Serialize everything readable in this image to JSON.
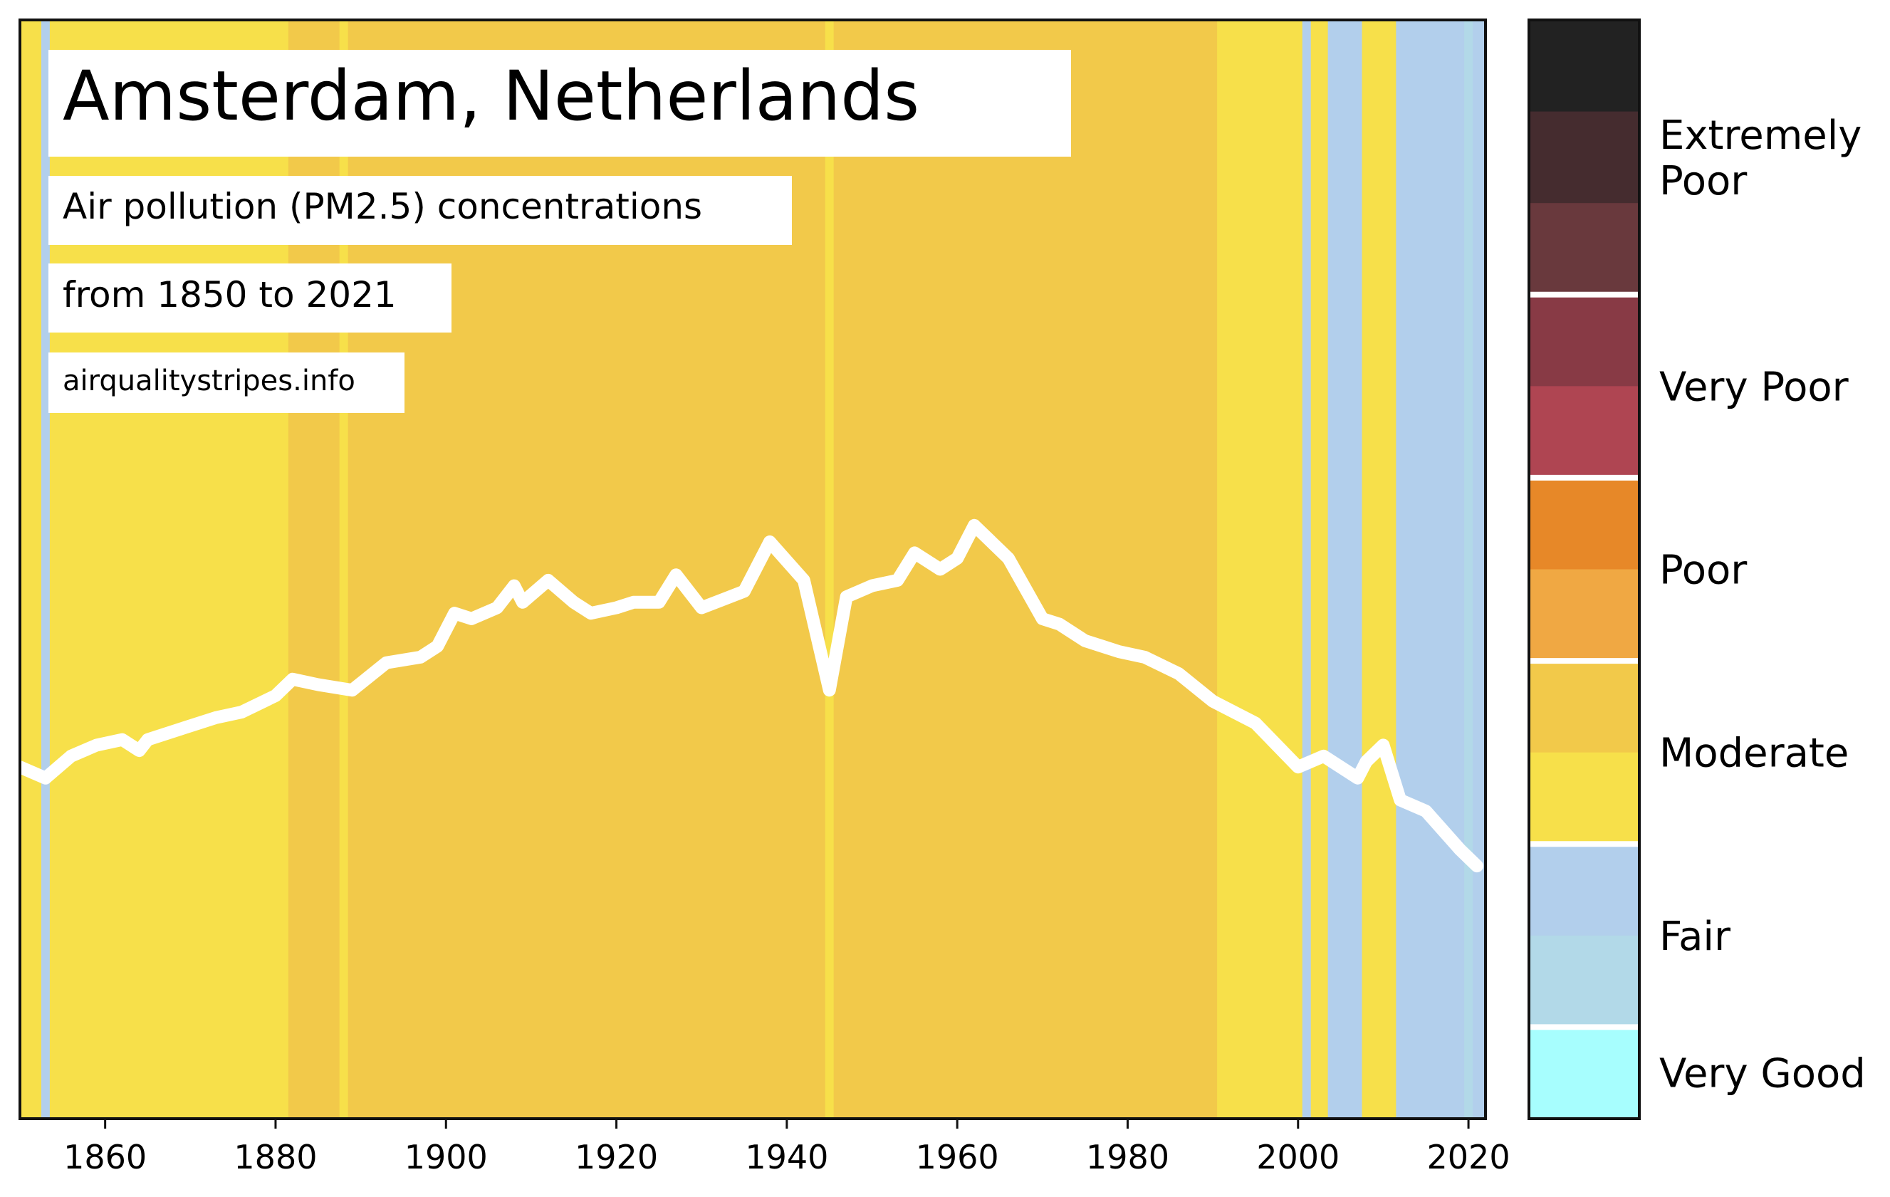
{
  "chart_data": {
    "type": "heatmap",
    "title": "Amsterdam, Netherlands",
    "subtitle": "Air pollution (PM2.5) concentrations",
    "period": "from 1850 to 2021",
    "source": "airqualitystripes.info",
    "xlabel": "",
    "ylabel": "",
    "xlim": [
      1850,
      2022
    ],
    "x_ticks": [
      "1860",
      "1880",
      "1900",
      "1920",
      "1940",
      "1960",
      "1980",
      "2000",
      "2020"
    ],
    "stripe_segments": [
      {
        "from": 1850,
        "to": 1852.5,
        "category": "moderate-low"
      },
      {
        "from": 1852.5,
        "to": 1853.5,
        "category": "fair-high"
      },
      {
        "from": 1853.5,
        "to": 1881.5,
        "category": "moderate-low"
      },
      {
        "from": 1881.5,
        "to": 1887.5,
        "category": "moderate-high"
      },
      {
        "from": 1887.5,
        "to": 1888.5,
        "category": "moderate-low"
      },
      {
        "from": 1888.5,
        "to": 1944.5,
        "category": "moderate-high"
      },
      {
        "from": 1944.5,
        "to": 1945.5,
        "category": "moderate-low"
      },
      {
        "from": 1945.5,
        "to": 1990.5,
        "category": "moderate-high"
      },
      {
        "from": 1990.5,
        "to": 2000.5,
        "category": "moderate-low"
      },
      {
        "from": 2000.5,
        "to": 2001.5,
        "category": "fair-high"
      },
      {
        "from": 2001.5,
        "to": 2003.5,
        "category": "moderate-low"
      },
      {
        "from": 2003.5,
        "to": 2007.5,
        "category": "fair-high"
      },
      {
        "from": 2007.5,
        "to": 2011.5,
        "category": "moderate-low"
      },
      {
        "from": 2011.5,
        "to": 2019.5,
        "category": "fair-high"
      },
      {
        "from": 2019.5,
        "to": 2020.5,
        "category": "fair-low"
      },
      {
        "from": 2020.5,
        "to": 2022,
        "category": "fair-high"
      }
    ],
    "trend_line": {
      "x": [
        1850,
        1853,
        1856,
        1859,
        1862,
        1864,
        1865,
        1869,
        1873,
        1876,
        1880,
        1882,
        1885,
        1889,
        1893,
        1897,
        1899,
        1901,
        1903,
        1906,
        1908,
        1909,
        1912,
        1915,
        1917,
        1920,
        1922,
        1925,
        1927,
        1930,
        1935,
        1938,
        1942,
        1945,
        1947,
        1950,
        1953,
        1955,
        1958,
        1960,
        1962,
        1966,
        1970,
        1972,
        1975,
        1977,
        1979,
        1982,
        1986,
        1990,
        1995,
        2000,
        2003,
        2007,
        2008,
        2010,
        2012,
        2015,
        2019,
        2021
      ],
      "y": [
        6.4,
        6.2,
        6.6,
        6.8,
        6.9,
        6.7,
        6.9,
        7.1,
        7.3,
        7.4,
        7.7,
        8.0,
        7.9,
        7.8,
        8.3,
        8.4,
        8.6,
        9.2,
        9.1,
        9.3,
        9.7,
        9.4,
        9.8,
        9.4,
        9.2,
        9.3,
        9.4,
        9.4,
        9.9,
        9.3,
        9.6,
        10.5,
        9.8,
        7.8,
        9.5,
        9.7,
        9.8,
        10.3,
        10.0,
        10.2,
        10.8,
        10.2,
        9.1,
        9.0,
        8.7,
        8.6,
        8.5,
        8.4,
        8.1,
        7.6,
        7.2,
        6.4,
        6.6,
        6.2,
        6.5,
        6.8,
        5.8,
        5.6,
        4.9,
        4.6
      ]
    },
    "ylim": [
      0,
      20
    ],
    "legend": {
      "position": "right",
      "bands": [
        {
          "label": "Extremely Poor",
          "colors": [
            "#222222",
            "#452c2f",
            "#69393d"
          ]
        },
        {
          "label": "Very Poor",
          "colors": [
            "#883a45",
            "#af4552"
          ]
        },
        {
          "label": "Poor",
          "colors": [
            "#e78828",
            "#f0a843"
          ]
        },
        {
          "label": "Moderate",
          "colors": [
            "#f2c94a",
            "#f7e04a"
          ]
        },
        {
          "label": "Fair",
          "colors": [
            "#b2cfec",
            "#b2d9e8"
          ]
        },
        {
          "label": "Very Good",
          "colors": [
            "#a7fefe"
          ]
        }
      ]
    },
    "colors": {
      "moderate-high": "#f2c94a",
      "moderate-low": "#f7e04a",
      "fair-high": "#b2cfec",
      "fair-low": "#b2d9e8",
      "line": "#ffffff"
    }
  }
}
